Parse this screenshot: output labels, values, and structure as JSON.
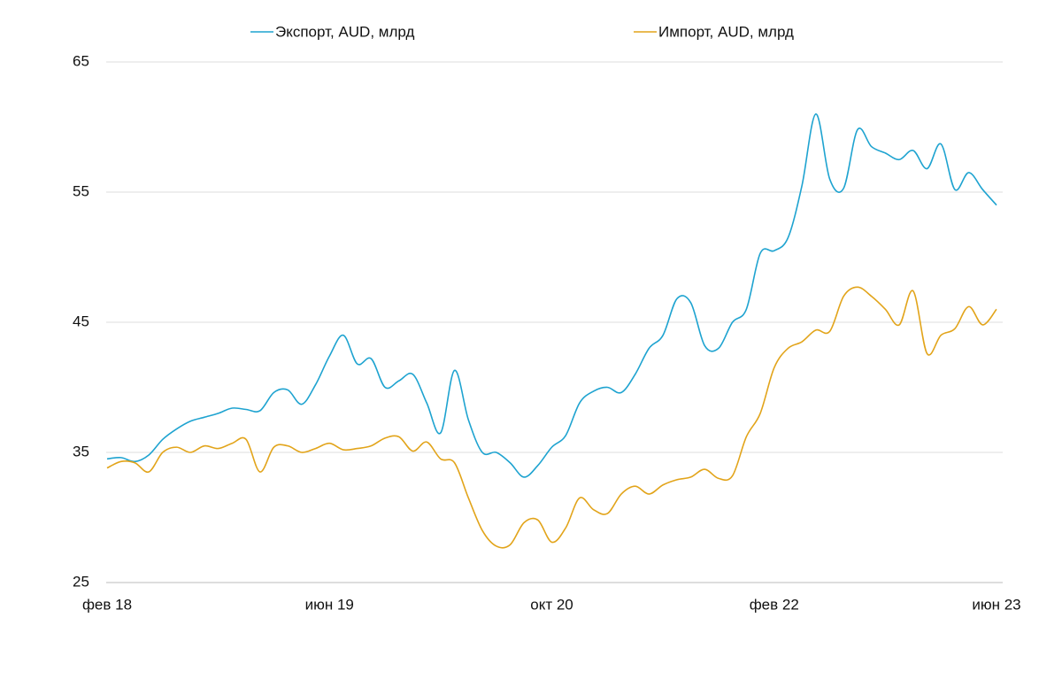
{
  "chart_data": {
    "type": "line",
    "categories": [
      "фев 18",
      null,
      null,
      null,
      null,
      null,
      null,
      null,
      null,
      null,
      null,
      null,
      null,
      null,
      null,
      null,
      "июн 19",
      null,
      null,
      null,
      null,
      null,
      null,
      null,
      null,
      null,
      null,
      null,
      null,
      null,
      null,
      null,
      "окт 20",
      null,
      null,
      null,
      null,
      null,
      null,
      null,
      null,
      null,
      null,
      null,
      null,
      null,
      null,
      null,
      "фев 22",
      null,
      null,
      null,
      null,
      null,
      null,
      null,
      null,
      null,
      null,
      null,
      null,
      null,
      null,
      null,
      "июн 23"
    ],
    "series": [
      {
        "name": "Экспорт, AUD, млрд",
        "color": "#1ea3d0",
        "values": [
          34.5,
          34.6,
          34.3,
          34.8,
          36.0,
          36.8,
          37.4,
          37.7,
          38.0,
          38.4,
          38.3,
          38.2,
          39.6,
          39.8,
          38.7,
          40.2,
          42.4,
          44.0,
          41.8,
          42.2,
          40.0,
          40.5,
          41.0,
          38.8,
          36.5,
          41.3,
          37.5,
          35.0,
          35.0,
          34.2,
          33.1,
          34.0,
          35.4,
          36.3,
          38.8,
          39.7,
          40.0,
          39.6,
          41.0,
          43.0,
          44.0,
          46.8,
          46.5,
          43.2,
          43.0,
          45.0,
          46.0,
          50.3,
          50.5,
          51.5,
          55.5,
          61.0,
          56.0,
          55.3,
          59.8,
          58.5,
          58.0,
          57.5,
          58.2,
          56.8,
          58.7,
          55.2,
          56.5,
          55.2,
          54.0
        ]
      },
      {
        "name": "Импорт, AUD, млрд",
        "color": "#e2a41a",
        "values": [
          33.8,
          34.3,
          34.2,
          33.5,
          35.0,
          35.4,
          35.0,
          35.5,
          35.3,
          35.7,
          36.0,
          33.5,
          35.4,
          35.5,
          35.0,
          35.3,
          35.7,
          35.2,
          35.3,
          35.5,
          36.1,
          36.2,
          35.1,
          35.8,
          34.5,
          34.2,
          31.5,
          29.0,
          27.8,
          27.9,
          29.6,
          29.8,
          28.1,
          29.2,
          31.5,
          30.6,
          30.3,
          31.8,
          32.4,
          31.8,
          32.5,
          32.9,
          33.1,
          33.7,
          33.0,
          33.2,
          36.2,
          38.0,
          41.5,
          43.0,
          43.5,
          44.4,
          44.3,
          47.0,
          47.7,
          47.0,
          46.0,
          44.8,
          47.4,
          42.6,
          44.0,
          44.5,
          46.2,
          44.8,
          46.0
        ]
      }
    ],
    "ylim": [
      25,
      65
    ],
    "yticks": [
      25,
      35,
      45,
      55,
      65
    ],
    "grid": true,
    "legend": "top"
  }
}
